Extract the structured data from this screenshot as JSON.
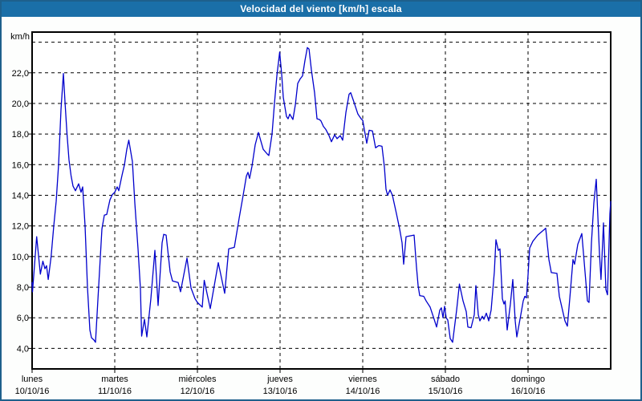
{
  "window": {
    "title": "Velocidad del viento [km/h] escala",
    "colors": {
      "titlebar_bg": "#1a6fa8",
      "titlebar_text": "#ffffff",
      "frame_border": "#1e608c",
      "background": "#fdfefd",
      "plot_background": "#ffffff",
      "grid": "#000000",
      "line": "#0000cc"
    }
  },
  "chart_data": {
    "type": "line",
    "title": "Velocidad del viento [km/h] escala",
    "ylabel": "km/h",
    "ylim": [
      2.66,
      24.66
    ],
    "xlim_days": [
      0,
      7
    ],
    "grid": "dashed",
    "legend": "none",
    "y_grid_values": [
      24,
      22,
      20,
      18,
      16,
      14,
      12,
      10,
      8,
      6,
      4
    ],
    "y_ticks": [
      {
        "v": 22,
        "label": "22,0"
      },
      {
        "v": 20,
        "label": "20,0"
      },
      {
        "v": 18,
        "label": "18,0"
      },
      {
        "v": 16,
        "label": "16,0"
      },
      {
        "v": 14,
        "label": "14,0"
      },
      {
        "v": 12,
        "label": "12,0"
      },
      {
        "v": 10,
        "label": "10,0"
      },
      {
        "v": 8,
        "label": "8,0"
      },
      {
        "v": 6,
        "label": "6,0"
      },
      {
        "v": 4,
        "label": "4,0"
      }
    ],
    "x_days": [
      {
        "name": "lunes",
        "date": "10/10/16"
      },
      {
        "name": "martes",
        "date": "11/10/16"
      },
      {
        "name": "miércoles",
        "date": "12/10/16"
      },
      {
        "name": "jueves",
        "date": "13/10/16"
      },
      {
        "name": "viernes",
        "date": "14/10/16"
      },
      {
        "name": "sábado",
        "date": "15/10/16"
      },
      {
        "name": "domingo",
        "date": "16/10/16"
      }
    ],
    "series": [
      {
        "name": "Velocidad del viento [km/h]",
        "color": "#0000cc",
        "points": [
          [
            0.0,
            8.3
          ],
          [
            0.005,
            7.7
          ],
          [
            0.055,
            11.3
          ],
          [
            0.1,
            8.85
          ],
          [
            0.13,
            9.7
          ],
          [
            0.155,
            9.2
          ],
          [
            0.175,
            9.4
          ],
          [
            0.195,
            8.5
          ],
          [
            0.23,
            10.0
          ],
          [
            0.262,
            12.0
          ],
          [
            0.291,
            13.6
          ],
          [
            0.32,
            16.0
          ],
          [
            0.35,
            19.6
          ],
          [
            0.379,
            21.95
          ],
          [
            0.398,
            20.1
          ],
          [
            0.422,
            18.0
          ],
          [
            0.447,
            16.3
          ],
          [
            0.471,
            15.3
          ],
          [
            0.495,
            14.6
          ],
          [
            0.524,
            14.3
          ],
          [
            0.563,
            14.75
          ],
          [
            0.592,
            14.2
          ],
          [
            0.612,
            14.55
          ],
          [
            0.641,
            12.0
          ],
          [
            0.67,
            8.0
          ],
          [
            0.699,
            5.2
          ],
          [
            0.718,
            4.7
          ],
          [
            0.748,
            4.55
          ],
          [
            0.767,
            4.4
          ],
          [
            0.806,
            8.1
          ],
          [
            0.845,
            11.8
          ],
          [
            0.874,
            12.7
          ],
          [
            0.903,
            12.75
          ],
          [
            0.942,
            13.7
          ],
          [
            0.971,
            14.05
          ],
          [
            1.0,
            14.2
          ],
          [
            1.029,
            14.55
          ],
          [
            1.049,
            14.3
          ],
          [
            1.087,
            15.3
          ],
          [
            1.117,
            16.0
          ],
          [
            1.146,
            17.0
          ],
          [
            1.17,
            17.6
          ],
          [
            1.214,
            16.2
          ],
          [
            1.243,
            13.5
          ],
          [
            1.282,
            10.5
          ],
          [
            1.311,
            7.9
          ],
          [
            1.325,
            4.8
          ],
          [
            1.359,
            5.9
          ],
          [
            1.388,
            4.75
          ],
          [
            1.437,
            7.25
          ],
          [
            1.485,
            10.4
          ],
          [
            1.524,
            6.8
          ],
          [
            1.573,
            10.9
          ],
          [
            1.592,
            11.45
          ],
          [
            1.621,
            11.4
          ],
          [
            1.67,
            9.0
          ],
          [
            1.699,
            8.4
          ],
          [
            1.767,
            8.3
          ],
          [
            1.796,
            7.7
          ],
          [
            1.874,
            9.9
          ],
          [
            1.922,
            7.95
          ],
          [
            1.971,
            7.25
          ],
          [
            2.0,
            7.0
          ],
          [
            2.058,
            6.7
          ],
          [
            2.083,
            8.45
          ],
          [
            2.155,
            6.6
          ],
          [
            2.252,
            9.6
          ],
          [
            2.33,
            7.6
          ],
          [
            2.379,
            10.5
          ],
          [
            2.447,
            10.6
          ],
          [
            2.505,
            12.5
          ],
          [
            2.553,
            14.0
          ],
          [
            2.592,
            15.25
          ],
          [
            2.612,
            15.5
          ],
          [
            2.631,
            15.1
          ],
          [
            2.66,
            15.9
          ],
          [
            2.699,
            17.3
          ],
          [
            2.738,
            18.1
          ],
          [
            2.796,
            17.0
          ],
          [
            2.845,
            16.7
          ],
          [
            2.864,
            16.6
          ],
          [
            2.903,
            18.0
          ],
          [
            2.932,
            20.0
          ],
          [
            2.961,
            21.8
          ],
          [
            2.995,
            23.35
          ],
          [
            3.019,
            21.9
          ],
          [
            3.039,
            20.4
          ],
          [
            3.078,
            19.15
          ],
          [
            3.097,
            19.0
          ],
          [
            3.117,
            19.3
          ],
          [
            3.155,
            18.95
          ],
          [
            3.184,
            19.9
          ],
          [
            3.214,
            21.3
          ],
          [
            3.243,
            21.6
          ],
          [
            3.272,
            21.8
          ],
          [
            3.301,
            22.8
          ],
          [
            3.33,
            23.65
          ],
          [
            3.35,
            23.55
          ],
          [
            3.379,
            22.2
          ],
          [
            3.417,
            20.7
          ],
          [
            3.447,
            19.0
          ],
          [
            3.476,
            18.95
          ],
          [
            3.495,
            18.85
          ],
          [
            3.524,
            18.5
          ],
          [
            3.553,
            18.3
          ],
          [
            3.592,
            17.9
          ],
          [
            3.621,
            17.5
          ],
          [
            3.66,
            17.95
          ],
          [
            3.689,
            17.7
          ],
          [
            3.728,
            17.9
          ],
          [
            3.757,
            17.6
          ],
          [
            3.796,
            19.4
          ],
          [
            3.835,
            20.6
          ],
          [
            3.854,
            20.7
          ],
          [
            3.893,
            20.1
          ],
          [
            3.942,
            19.3
          ],
          [
            3.981,
            19.0
          ],
          [
            4.0,
            18.9
          ],
          [
            4.049,
            17.4
          ],
          [
            4.078,
            18.25
          ],
          [
            4.117,
            18.2
          ],
          [
            4.155,
            17.1
          ],
          [
            4.194,
            17.25
          ],
          [
            4.233,
            17.2
          ],
          [
            4.262,
            15.85
          ],
          [
            4.282,
            14.4
          ],
          [
            4.301,
            14.0
          ],
          [
            4.33,
            14.35
          ],
          [
            4.359,
            14.0
          ],
          [
            4.408,
            12.8
          ],
          [
            4.447,
            11.8
          ],
          [
            4.476,
            10.9
          ],
          [
            4.495,
            9.5
          ],
          [
            4.524,
            11.3
          ],
          [
            4.573,
            11.35
          ],
          [
            4.621,
            11.4
          ],
          [
            4.65,
            9.3
          ],
          [
            4.67,
            8.1
          ],
          [
            4.689,
            7.45
          ],
          [
            4.738,
            7.4
          ],
          [
            4.767,
            7.1
          ],
          [
            4.816,
            6.7
          ],
          [
            4.864,
            5.9
          ],
          [
            4.893,
            5.4
          ],
          [
            4.932,
            6.5
          ],
          [
            4.951,
            6.65
          ],
          [
            4.971,
            6.0
          ],
          [
            4.99,
            6.75
          ],
          [
            5.01,
            6.0
          ],
          [
            5.029,
            5.85
          ],
          [
            5.058,
            4.65
          ],
          [
            5.087,
            4.4
          ],
          [
            5.136,
            6.5
          ],
          [
            5.17,
            8.2
          ],
          [
            5.214,
            7.1
          ],
          [
            5.252,
            6.4
          ],
          [
            5.272,
            5.4
          ],
          [
            5.311,
            5.35
          ],
          [
            5.35,
            6.2
          ],
          [
            5.369,
            8.1
          ],
          [
            5.398,
            6.2
          ],
          [
            5.417,
            5.8
          ],
          [
            5.447,
            6.1
          ],
          [
            5.466,
            5.9
          ],
          [
            5.495,
            6.3
          ],
          [
            5.524,
            5.8
          ],
          [
            5.553,
            6.5
          ],
          [
            5.592,
            9.0
          ],
          [
            5.612,
            11.1
          ],
          [
            5.641,
            10.4
          ],
          [
            5.66,
            10.5
          ],
          [
            5.689,
            7.25
          ],
          [
            5.709,
            6.9
          ],
          [
            5.723,
            7.1
          ],
          [
            5.748,
            5.2
          ],
          [
            5.786,
            6.9
          ],
          [
            5.816,
            8.5
          ],
          [
            5.845,
            5.8
          ],
          [
            5.864,
            4.75
          ],
          [
            5.913,
            6.2
          ],
          [
            5.942,
            7.1
          ],
          [
            5.961,
            7.4
          ],
          [
            5.981,
            7.3
          ],
          [
            6.0,
            8.8
          ],
          [
            6.019,
            10.55
          ],
          [
            6.058,
            11.0
          ],
          [
            6.117,
            11.4
          ],
          [
            6.214,
            11.85
          ],
          [
            6.252,
            9.8
          ],
          [
            6.282,
            8.95
          ],
          [
            6.35,
            8.9
          ],
          [
            6.379,
            7.4
          ],
          [
            6.447,
            5.8
          ],
          [
            6.476,
            5.45
          ],
          [
            6.505,
            7.25
          ],
          [
            6.544,
            9.8
          ],
          [
            6.563,
            9.5
          ],
          [
            6.602,
            10.8
          ],
          [
            6.65,
            11.5
          ],
          [
            6.689,
            9.0
          ],
          [
            6.718,
            7.1
          ],
          [
            6.738,
            7.0
          ],
          [
            6.767,
            10.9
          ],
          [
            6.796,
            13.5
          ],
          [
            6.825,
            15.05
          ],
          [
            6.864,
            10.2
          ],
          [
            6.883,
            8.5
          ],
          [
            6.913,
            12.2
          ],
          [
            6.942,
            7.85
          ],
          [
            6.961,
            7.5
          ],
          [
            6.99,
            12.8
          ],
          [
            7.0,
            13.6
          ]
        ]
      }
    ]
  }
}
